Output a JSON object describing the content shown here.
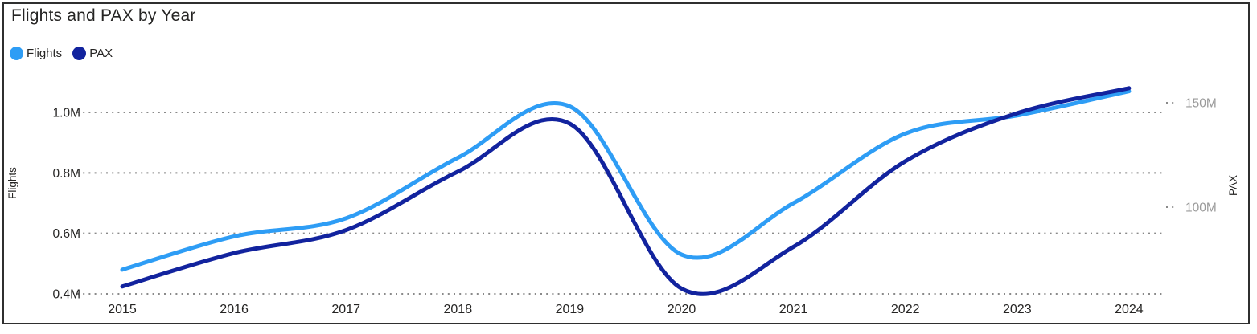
{
  "title": "Flights and PAX by Year",
  "legend": {
    "items": [
      {
        "label": "Flights",
        "color": "#2e9df5",
        "icon": "circle-swatch-icon"
      },
      {
        "label": "PAX",
        "color": "#12239e",
        "icon": "circle-swatch-icon"
      }
    ],
    "position": "top-left"
  },
  "chart_data": {
    "type": "line",
    "title": "Flights and PAX by Year",
    "smoothing": true,
    "markers": false,
    "x": [
      2015,
      2016,
      2017,
      2018,
      2019,
      2020,
      2021,
      2022,
      2023,
      2024
    ],
    "x_tick_labels": [
      "2015",
      "2016",
      "2017",
      "2018",
      "2019",
      "2020",
      "2021",
      "2022",
      "2023",
      "2024"
    ],
    "series": [
      {
        "name": "Flights",
        "axis": "left",
        "color": "#2e9df5",
        "unit": "M",
        "values": [
          0.48,
          0.59,
          0.65,
          0.85,
          1.02,
          0.53,
          0.7,
          0.93,
          0.99,
          1.07
        ]
      },
      {
        "name": "PAX",
        "axis": "right",
        "color": "#12239e",
        "unit": "M",
        "values": [
          62,
          78,
          89,
          117,
          140,
          61,
          81,
          122,
          145,
          157
        ]
      }
    ],
    "left_axis": {
      "title": "Flights",
      "tick_labels": [
        "1.0M",
        "0.8M",
        "0.6M",
        "0.4M"
      ],
      "tick_values": [
        1.0,
        0.8,
        0.6,
        0.4
      ],
      "visible_range": [
        0.4,
        1.0
      ]
    },
    "right_axis": {
      "title": "PAX",
      "tick_labels": [
        "150M",
        "100M"
      ],
      "tick_values": [
        150,
        100
      ],
      "visible_range": [
        100,
        150
      ]
    },
    "grid": {
      "style": "dotted",
      "color": "#8a8a8a",
      "on": true
    },
    "legend_position": "top-left"
  },
  "colors": {
    "background": "#ffffff",
    "frame_border": "#2f2f2f",
    "title_text": "#252423",
    "left_tick_text": "#252423",
    "right_tick_text": "#9a9a9a",
    "x_tick_text": "#252423",
    "axis_title_text": "#252423",
    "gridline": "#8a8a8a"
  }
}
